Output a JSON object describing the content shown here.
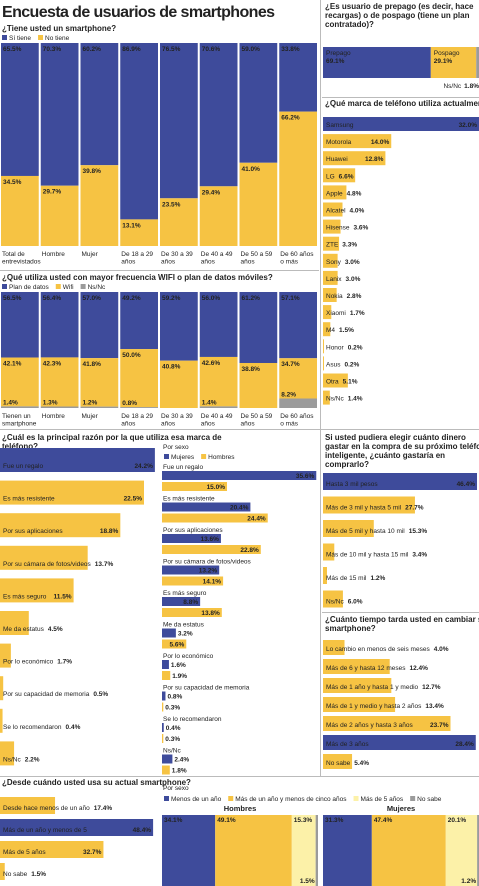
{
  "title": "Encuesta de usuarios de smartphones",
  "chart_data": [
    {
      "type": "stacked_column",
      "title": "¿Tiene usted un smartphone?",
      "categories": [
        "Total de entrevistados",
        "Hombre",
        "Mujer",
        "De 18 a 29 años",
        "De 30 a 39 años",
        "De 40 a 49 años",
        "De 50 a 59 años",
        "De 60 años o más"
      ],
      "series": [
        {
          "name": "Sí tiene",
          "color": "#3e4b9b",
          "values": [
            65.5,
            70.3,
            60.2,
            86.9,
            76.5,
            70.6,
            59.0,
            33.8
          ],
          "value_labels": [
            "65.5%",
            "70.3%",
            "60.2%",
            "86.9%",
            "76.5%",
            "70.6%",
            "59.0%",
            "33.8%"
          ]
        },
        {
          "name": "No tiene",
          "color": "#f6c343",
          "values": [
            34.5,
            29.7,
            39.8,
            13.1,
            23.5,
            29.4,
            41.0,
            66.2
          ],
          "value_labels": [
            "34.5%",
            "29.7%",
            "39.8%",
            "13.1%",
            "23.5%",
            "29.4%",
            "41.0%",
            "66.2%"
          ]
        }
      ],
      "ylim": [
        0,
        100
      ]
    },
    {
      "type": "stacked_column",
      "title": "¿Qué utiliza usted con mayor frecuencia WIFI o plan de datos móviles?",
      "categories": [
        "Tienen un smartphone",
        "Hombre",
        "Mujer",
        "De 18 a 29 años",
        "De 30 a 39 años",
        "De 40 a 49 años",
        "De 50 a 59 años",
        "De 60 años o más"
      ],
      "series": [
        {
          "name": "Plan de datos",
          "color": "#3e4b9b",
          "values": [
            56.5,
            56.4,
            57.0,
            49.2,
            59.2,
            56.0,
            61.2,
            57.1
          ],
          "value_labels": [
            "56.5%",
            "56.4%",
            "57.0%",
            "49.2%",
            "59.2%",
            "56.0%",
            "61.2%",
            "57.1%"
          ]
        },
        {
          "name": "Wifi",
          "color": "#f6c343",
          "values": [
            42.1,
            42.3,
            41.8,
            50.0,
            40.8,
            42.6,
            38.8,
            34.7
          ],
          "value_labels": [
            "42.1%",
            "42.3%",
            "41.8%",
            "50.0%",
            "40.8%",
            "42.6%",
            "38.8%",
            "34.7%"
          ]
        },
        {
          "name": "Ns/Nc",
          "color": "#9b9b9b",
          "values": [
            1.4,
            1.3,
            1.2,
            0.8,
            null,
            1.4,
            null,
            8.2
          ],
          "value_labels": [
            "1.4%",
            "1.3%",
            "1.2%",
            "0.8%",
            null,
            "1.4%",
            null,
            "8.2%"
          ]
        }
      ],
      "ylim": [
        0,
        100
      ]
    },
    {
      "type": "stacked_bar",
      "title": "¿Es usuario de prepago (es decir, hace recargas) o de pospago (tiene un plan contratado)?",
      "categories": [
        "Prepago",
        "Pospago",
        "Ns/Nc"
      ],
      "values": [
        69.1,
        29.1,
        1.8
      ],
      "value_labels": [
        "69.1%",
        "29.1%",
        "1.8%"
      ],
      "colors": [
        "#3e4b9b",
        "#f6c343",
        "#9b9b9b"
      ],
      "xlim": [
        0,
        100
      ]
    },
    {
      "type": "hbar",
      "title": "¿Qué marca de teléfono utiliza actualmente?",
      "categories": [
        "Samsung",
        "Motorola",
        "Huawei",
        "LG",
        "Apple",
        "Alcatel",
        "Hisense",
        "ZTE",
        "Sony",
        "Lanix",
        "Nokia",
        "Xiaomi",
        "M4",
        "Honor",
        "Asus",
        "Otra",
        "Ns/Nc"
      ],
      "values": [
        32.0,
        14.0,
        12.8,
        6.6,
        4.8,
        4.0,
        3.6,
        3.3,
        3.0,
        3.0,
        2.8,
        1.7,
        1.5,
        0.2,
        0.2,
        5.1,
        1.4
      ],
      "value_labels": [
        "32.0%",
        "14.0%",
        "12.8%",
        "6.6%",
        "4.8%",
        "4.0%",
        "3.6%",
        "3.3%",
        "3.0%",
        "3.0%",
        "2.8%",
        "1.7%",
        "1.5%",
        "0.2%",
        "0.2%",
        "5.1%",
        "1.4%"
      ],
      "colors": [
        "#3e4b9b",
        "#f6c343",
        "#f6c343",
        "#f6c343",
        "#f6c343",
        "#f6c343",
        "#f6c343",
        "#f6c343",
        "#f6c343",
        "#f6c343",
        "#f6c343",
        "#f6c343",
        "#f6c343",
        "#f6c343",
        "#f6c343",
        "#f6c343",
        "#f6c343"
      ],
      "xlim": [
        0,
        32
      ]
    },
    {
      "type": "hbar",
      "title": "¿Cuál es la principal razón por la que utiliza esa marca de teléfono?",
      "categories": [
        "Fue un regalo",
        "Es más resistente",
        "Por sus aplicaciones",
        "Por su cámara de fotos/videos",
        "Es más seguro",
        "Me da estatus",
        "Por lo económico",
        "Por su capacidad de memoria",
        "Se lo recomendaron",
        "Ns/Nc"
      ],
      "values": [
        24.2,
        22.5,
        18.8,
        13.7,
        11.5,
        4.5,
        1.7,
        0.5,
        0.4,
        2.2
      ],
      "value_labels": [
        "24.2%",
        "22.5%",
        "18.8%",
        "13.7%",
        "11.5%",
        "4.5%",
        "1.7%",
        "0.5%",
        "0.4%",
        "2.2%"
      ],
      "colors": [
        "#3e4b9b",
        "#f6c343",
        "#f6c343",
        "#f6c343",
        "#f6c343",
        "#f6c343",
        "#f6c343",
        "#f6c343",
        "#f6c343",
        "#f6c343"
      ],
      "xlim": [
        0,
        25
      ]
    },
    {
      "type": "grouped_bar",
      "title": "Por sexo",
      "categories": [
        "Fue un regalo",
        "Es más resistente",
        "Por sus aplicaciones",
        "Por su cámara de fotos/videos",
        "Es más seguro",
        "Me da estatus",
        "Por lo económico",
        "Por su capacidad de memoria",
        "Se lo recomendaron",
        "Ns/Nc"
      ],
      "series": [
        {
          "name": "Mujeres",
          "color": "#3e4b9b",
          "values": [
            35.6,
            20.4,
            13.6,
            13.2,
            8.8,
            3.2,
            1.6,
            0.8,
            0.4,
            2.4
          ],
          "value_labels": [
            "35.6%",
            "20.4%",
            "13.6%",
            "13.2%",
            "8.8%",
            "3.2%",
            "1.6%",
            "0.8%",
            "0.4%",
            "2.4%"
          ]
        },
        {
          "name": "Hombres",
          "color": "#f6c343",
          "values": [
            15.0,
            24.4,
            22.8,
            14.1,
            13.8,
            5.6,
            1.9,
            0.3,
            0.3,
            1.8
          ],
          "value_labels": [
            "15.0%",
            "24.4%",
            "22.8%",
            "14.1%",
            "13.8%",
            "5.6%",
            "1.9%",
            "0.3%",
            "0.3%",
            "1.8%"
          ]
        }
      ],
      "xlim": [
        0,
        36
      ]
    },
    {
      "type": "hbar",
      "title": "Si usted pudiera elegir cuánto dinero gastar en la compra de su próximo teléfono inteligente, ¿cuánto gastaría en comprarlo?",
      "categories": [
        "Hasta 3 mil pesos",
        "Más de 3 mil y hasta 5 mil",
        "Más de 5 mil y hasta 10 mil",
        "Más de 10 mil y hasta 15 mil",
        "Más de 15 mil",
        "Ns/Nc"
      ],
      "values": [
        46.4,
        27.7,
        15.3,
        3.4,
        1.2,
        6.0
      ],
      "value_labels": [
        "46.4%",
        "27.7%",
        "15.3%",
        "3.4%",
        "1.2%",
        "6.0%"
      ],
      "colors": [
        "#3e4b9b",
        "#f6c343",
        "#f6c343",
        "#f6c343",
        "#f6c343",
        "#f6c343"
      ],
      "xlim": [
        0,
        47
      ]
    },
    {
      "type": "hbar",
      "title": "¿Cuánto tiempo tarda usted en cambiar su smartphone?",
      "categories": [
        "Lo cambio en menos de seis meses",
        "Más de 6 y hasta 12 meses",
        "Más de 1 año y hasta 1 y medio",
        "Más de 1 y medio y hasta 2 años",
        "Más de 2 años y hasta 3 años",
        "Más de 3 años",
        "No sabe"
      ],
      "values": [
        4.0,
        12.4,
        12.7,
        13.4,
        23.7,
        28.4,
        5.4
      ],
      "value_labels": [
        "4.0%",
        "12.4%",
        "12.7%",
        "13.4%",
        "23.7%",
        "28.4%",
        "5.4%"
      ],
      "colors": [
        "#f6c343",
        "#f6c343",
        "#f6c343",
        "#f6c343",
        "#f6c343",
        "#3e4b9b",
        "#f6c343"
      ],
      "xlim": [
        0,
        29
      ]
    },
    {
      "type": "hbar",
      "title": "¿Desde cuándo usted usa su actual smartphone?",
      "categories": [
        "Desde hace menos de un año",
        "Más de un año y menos de 5",
        "Más de 5 años",
        "No sabe"
      ],
      "values": [
        17.4,
        48.4,
        32.7,
        1.5
      ],
      "value_labels": [
        "17.4%",
        "48.4%",
        "32.7%",
        "1.5%"
      ],
      "colors": [
        "#f6c343",
        "#3e4b9b",
        "#f6c343",
        "#f6c343"
      ],
      "xlim": [
        0,
        49
      ]
    },
    {
      "type": "mosaic",
      "title": "Por sexo",
      "categories": [
        "Hombres",
        "Mujeres"
      ],
      "series": [
        {
          "name": "Menos de un año",
          "color": "#3e4b9b",
          "values": [
            34.1,
            31.3
          ],
          "value_labels": [
            "34.1%",
            "31.3%"
          ]
        },
        {
          "name": "Más de un año y menos de cinco años",
          "color": "#f6c343",
          "values": [
            49.1,
            47.4
          ],
          "value_labels": [
            "49.1%",
            "47.4%"
          ]
        },
        {
          "name": "Más de 5 años",
          "color": "#fcf1a8",
          "values": [
            15.3,
            20.1
          ],
          "value_labels": [
            "15.3%",
            "20.1%"
          ]
        },
        {
          "name": "No sabe",
          "color": "#9b9b9b",
          "values": [
            1.5,
            1.2
          ],
          "value_labels": [
            "1.5%",
            "1.2%"
          ]
        }
      ],
      "xlim": [
        0,
        100
      ]
    }
  ]
}
